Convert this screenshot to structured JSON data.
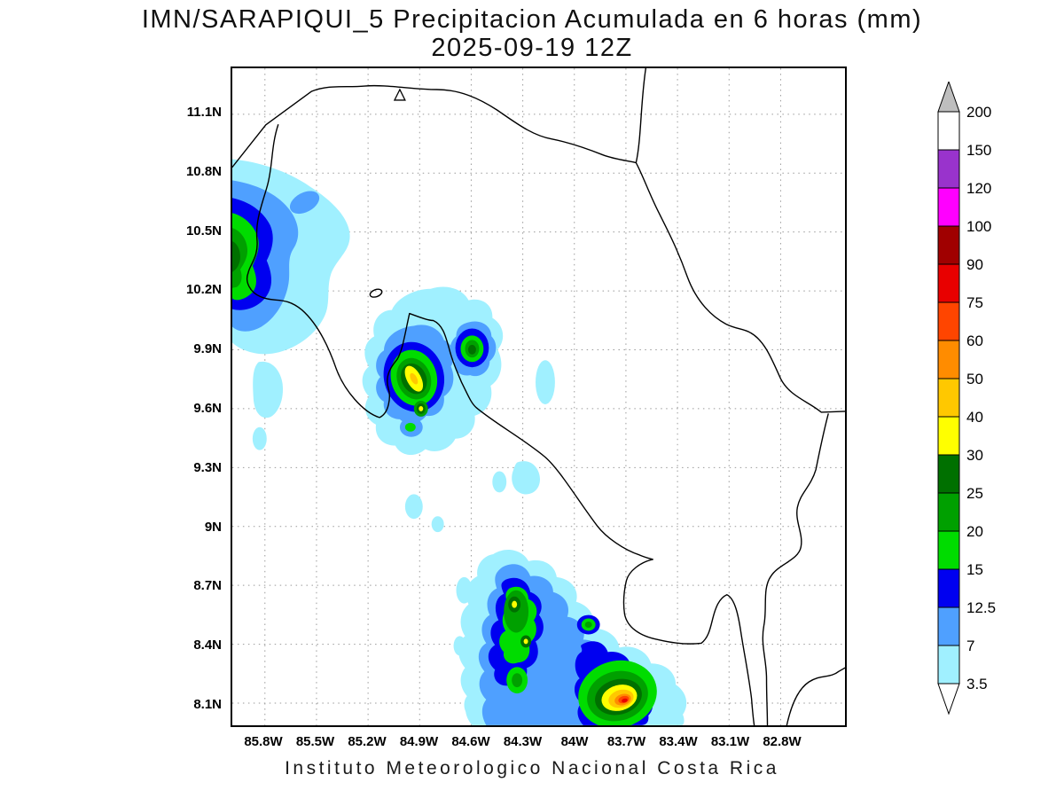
{
  "title": {
    "line1": "IMN/SARAPIQUI_5 Precipitacion Acumulada en 6 horas (mm)",
    "line2": "2025-09-19 12Z"
  },
  "footer": {
    "text": "Instituto Meteorologico Nacional Costa Rica"
  },
  "axes": {
    "lat_ticks": [
      "11.1N",
      "10.8N",
      "10.5N",
      "10.2N",
      "9.9N",
      "9.6N",
      "9.3N",
      "9N",
      "8.7N",
      "8.4N",
      "8.1N"
    ],
    "lon_ticks": [
      "85.8W",
      "85.5W",
      "85.2W",
      "84.9W",
      "84.6W",
      "84.3W",
      "84W",
      "83.7W",
      "83.4W",
      "83.1W",
      "82.8W"
    ]
  },
  "colorbar": {
    "units": "mm",
    "boundary_labels": [
      "200",
      "150",
      "120",
      "100",
      "90",
      "75",
      "60",
      "50",
      "40",
      "30",
      "25",
      "20",
      "15",
      "12.5",
      "7",
      "3.5"
    ],
    "segment_colors_top_to_bottom": [
      "#FFFFFF",
      "#9933CC",
      "#FF00FF",
      "#A00000",
      "#E80000",
      "#FF4500",
      "#FF8C00",
      "#FFC800",
      "#FFFF00",
      "#007000",
      "#00A000",
      "#00DC00",
      "#0000F0",
      "#4FA0FF",
      "#A0F0FF"
    ],
    "arrow_top_color": "#BEBEBE",
    "arrow_bottom_color": "#FFFFFF"
  },
  "palette": {
    "lv3_5": "#A0F0FF",
    "lv7": "#4FA0FF",
    "lv12_5": "#0000F0",
    "lv15": "#00DC00",
    "lv20": "#00A000",
    "lv25": "#007000",
    "lv30": "#FFFF00",
    "lv40": "#FFC800",
    "lv50": "#FF8C00",
    "lv60": "#FF4500",
    "lv75": "#E80000"
  },
  "chart_data": {
    "type": "heatmap",
    "title": "IMN/SARAPIQUI_5 Precipitacion Acumulada en 6 horas (mm)",
    "valid_time": "2025-09-19 12Z",
    "units": "mm",
    "shading_levels": [
      3.5,
      7,
      12.5,
      15,
      20,
      25,
      30,
      40,
      50,
      60,
      75,
      90,
      100,
      120,
      150,
      200
    ],
    "lon_range": [
      "85.8W",
      "82.8W"
    ],
    "lat_range": [
      "8.1N",
      "11.1N"
    ],
    "precip_maxima_read_from_map": [
      {
        "area": "northwest coast near 85.8W 10.3N",
        "approx_max_mm": 30
      },
      {
        "area": "central area near 84.8W 9.7N",
        "approx_max_mm": 50
      },
      {
        "area": "southern zone near 83.7W 8.1N",
        "approx_max_mm": 90
      }
    ],
    "legend_position": "right",
    "grid": "dotted"
  }
}
